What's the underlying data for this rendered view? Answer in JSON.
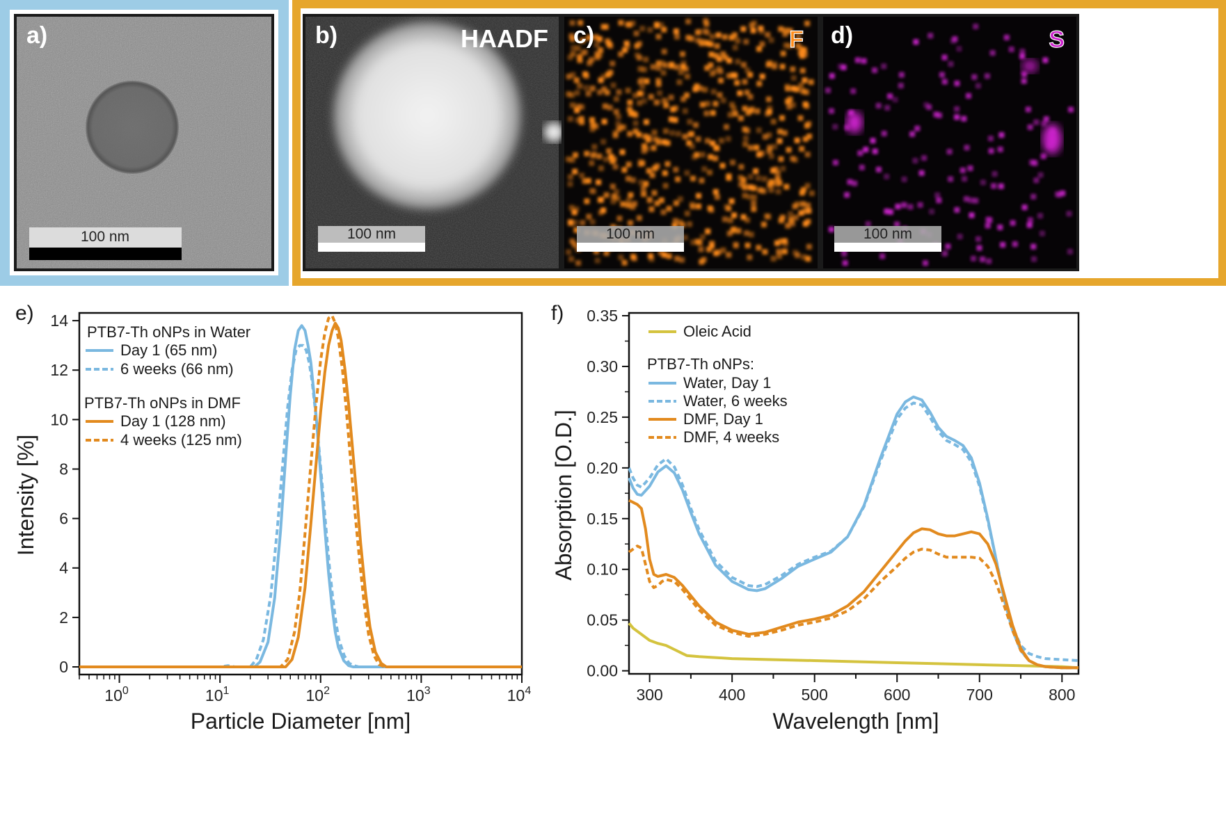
{
  "micrographs": {
    "a": {
      "label": "a)",
      "scale_bar": "100 nm"
    },
    "b": {
      "label": "b)",
      "channel": "HAADF",
      "scale_bar": "100 nm"
    },
    "c": {
      "label": "c)",
      "channel": "F",
      "scale_bar": "100 nm"
    },
    "d": {
      "label": "d)",
      "channel": "S",
      "scale_bar": "100 nm"
    },
    "colors": {
      "cryo_tem_frame": "#9dcce6",
      "stem_frame": "#e6a62c",
      "fluorine": "#ff8c1a",
      "sulfur": "#cc22cc"
    }
  },
  "chart_data": [
    {
      "panel": "e)",
      "type": "line",
      "xscale": "log",
      "xlabel": "Particle Diameter [nm]",
      "ylabel": "Intensity [%]",
      "xlim": [
        0.4,
        10000
      ],
      "ylim": [
        0,
        14.2
      ],
      "xticks": [
        {
          "value": 1,
          "base": "10",
          "exp": "0"
        },
        {
          "value": 10,
          "base": "10",
          "exp": "1"
        },
        {
          "value": 100,
          "base": "10",
          "exp": "2"
        },
        {
          "value": 1000,
          "base": "10",
          "exp": "3"
        },
        {
          "value": 10000,
          "base": "10",
          "exp": "4"
        }
      ],
      "yticks": [
        0,
        2,
        4,
        6,
        8,
        10,
        12,
        14
      ],
      "legend_groups": [
        {
          "title": "PTB7-Th oNPs in Water",
          "items": [
            "Day 1 (65 nm)",
            "6 weeks (66 nm)"
          ]
        },
        {
          "title": "PTB7-Th oNPs in DMF",
          "items": [
            "Day 1 (128 nm)",
            "4 weeks (125 nm)"
          ]
        }
      ],
      "legend_placement": "top-left",
      "series": [
        {
          "name": "Day 1 (65 nm)",
          "color": "#7ab8e0",
          "dash": "solid",
          "x": [
            0.4,
            22,
            25,
            30,
            35,
            40,
            45,
            50,
            55,
            60,
            65,
            70,
            75,
            80,
            90,
            100,
            110,
            120,
            130,
            140,
            150,
            170,
            190,
            210,
            10000
          ],
          "y": [
            0,
            0,
            0.2,
            1.0,
            2.8,
            5.5,
            8.5,
            11.0,
            12.8,
            13.6,
            13.8,
            13.6,
            13.0,
            12.3,
            10.2,
            7.8,
            5.6,
            3.8,
            2.4,
            1.4,
            0.8,
            0.25,
            0.05,
            0,
            0
          ]
        },
        {
          "name": "6 weeks (66 nm)",
          "color": "#7ab8e0",
          "dash": "dotted",
          "x": [
            0.4,
            10,
            12,
            14,
            20,
            23,
            27,
            32,
            37,
            42,
            47,
            52,
            57,
            62,
            67,
            72,
            77,
            82,
            92,
            102,
            112,
            122,
            132,
            142,
            152,
            172,
            192,
            215,
            240,
            10000
          ],
          "y": [
            0,
            0,
            0.05,
            0,
            0,
            0.3,
            1.1,
            2.9,
            5.5,
            8.2,
            10.5,
            12.0,
            12.8,
            13.0,
            13.0,
            12.8,
            12.3,
            11.6,
            9.8,
            7.7,
            5.8,
            4.1,
            2.8,
            1.8,
            1.1,
            0.45,
            0.15,
            0.05,
            0,
            0
          ]
        },
        {
          "name": "Day 1 (128 nm)",
          "color": "#e28a1e",
          "dash": "solid",
          "x": [
            0.4,
            45,
            52,
            60,
            70,
            80,
            90,
            100,
            110,
            120,
            130,
            140,
            150,
            160,
            175,
            190,
            210,
            230,
            250,
            280,
            310,
            350,
            400,
            450,
            10000
          ],
          "y": [
            0,
            0,
            0.3,
            1.2,
            3.2,
            5.8,
            8.2,
            10.3,
            11.9,
            13.0,
            13.6,
            13.9,
            13.7,
            13.2,
            12.0,
            10.6,
            8.6,
            6.8,
            5.0,
            3.0,
            1.6,
            0.6,
            0.15,
            0,
            0
          ]
        },
        {
          "name": "4 weeks (125 nm)",
          "color": "#e28a1e",
          "dash": "dotted",
          "x": [
            0.4,
            40,
            47,
            55,
            62,
            70,
            80,
            90,
            100,
            110,
            120,
            130,
            140,
            150,
            165,
            180,
            200,
            220,
            245,
            270,
            300,
            340,
            380,
            430,
            10000
          ],
          "y": [
            0,
            0,
            0.3,
            1.4,
            3.0,
            5.4,
            8.2,
            10.6,
            12.4,
            13.5,
            14.1,
            14.2,
            13.9,
            13.3,
            12.0,
            10.4,
            8.2,
            6.2,
            4.2,
            2.6,
            1.3,
            0.45,
            0.1,
            0,
            0
          ]
        }
      ]
    },
    {
      "panel": "f)",
      "type": "line",
      "xlabel": "Wavelength [nm]",
      "ylabel": "Absorption [O.D.]",
      "xlim": [
        275,
        820
      ],
      "ylim": [
        -0.003,
        0.35
      ],
      "xticks": [
        300,
        400,
        500,
        600,
        700,
        800
      ],
      "yticks": [
        "0.00",
        "0.05",
        "0.10",
        "0.15",
        "0.20",
        "0.25",
        "0.30",
        "0.35"
      ],
      "legend_items": [
        "Oleic Acid"
      ],
      "legend_group": {
        "title": "PTB7-Th oNPs:",
        "items": [
          "Water, Day 1",
          "Water, 6 weeks",
          "DMF, Day 1",
          "DMF, 4 weeks"
        ]
      },
      "legend_placement": "top-left",
      "series": [
        {
          "name": "Oleic Acid",
          "color": "#d4c33e",
          "dash": "solid",
          "x": [
            275,
            280,
            290,
            300,
            310,
            320,
            330,
            340,
            345,
            360,
            400,
            450,
            500,
            550,
            600,
            650,
            700,
            750,
            800,
            820
          ],
          "y": [
            0.047,
            0.042,
            0.036,
            0.03,
            0.027,
            0.025,
            0.021,
            0.017,
            0.015,
            0.014,
            0.012,
            0.011,
            0.01,
            0.009,
            0.008,
            0.007,
            0.006,
            0.005,
            0.004,
            0.003
          ]
        },
        {
          "name": "Water, Day 1",
          "color": "#7ab8e0",
          "dash": "solid",
          "x": [
            275,
            280,
            285,
            290,
            300,
            310,
            320,
            330,
            340,
            350,
            360,
            380,
            400,
            420,
            430,
            440,
            460,
            480,
            500,
            520,
            540,
            560,
            580,
            600,
            610,
            620,
            630,
            640,
            650,
            660,
            670,
            680,
            690,
            700,
            710,
            720,
            730,
            740,
            750,
            760,
            770,
            780,
            800,
            820
          ],
          "y": [
            0.19,
            0.18,
            0.174,
            0.173,
            0.182,
            0.196,
            0.202,
            0.195,
            0.178,
            0.156,
            0.135,
            0.104,
            0.088,
            0.08,
            0.079,
            0.081,
            0.091,
            0.103,
            0.11,
            0.117,
            0.132,
            0.163,
            0.21,
            0.253,
            0.265,
            0.27,
            0.267,
            0.255,
            0.24,
            0.231,
            0.227,
            0.222,
            0.21,
            0.185,
            0.15,
            0.11,
            0.07,
            0.04,
            0.02,
            0.01,
            0.006,
            0.004,
            0.003,
            0.003
          ]
        },
        {
          "name": "Water, 6 weeks",
          "color": "#7ab8e0",
          "dash": "dotted",
          "x": [
            275,
            280,
            285,
            290,
            300,
            310,
            320,
            330,
            340,
            350,
            360,
            380,
            400,
            420,
            430,
            440,
            460,
            480,
            500,
            520,
            540,
            560,
            580,
            600,
            610,
            620,
            630,
            640,
            650,
            660,
            670,
            680,
            690,
            700,
            710,
            720,
            730,
            740,
            750,
            760,
            770,
            780,
            800,
            820
          ],
          "y": [
            0.2,
            0.19,
            0.183,
            0.181,
            0.19,
            0.203,
            0.209,
            0.201,
            0.183,
            0.16,
            0.139,
            0.108,
            0.092,
            0.084,
            0.083,
            0.085,
            0.094,
            0.105,
            0.112,
            0.118,
            0.132,
            0.162,
            0.207,
            0.248,
            0.259,
            0.264,
            0.262,
            0.25,
            0.236,
            0.227,
            0.223,
            0.218,
            0.206,
            0.182,
            0.148,
            0.11,
            0.072,
            0.043,
            0.025,
            0.017,
            0.014,
            0.012,
            0.011,
            0.01
          ]
        },
        {
          "name": "DMF, Day 1",
          "color": "#e28a1e",
          "dash": "solid",
          "x": [
            275,
            280,
            285,
            290,
            295,
            300,
            305,
            310,
            315,
            320,
            330,
            340,
            360,
            380,
            400,
            420,
            440,
            460,
            480,
            500,
            520,
            540,
            560,
            580,
            600,
            610,
            620,
            630,
            640,
            650,
            660,
            670,
            680,
            690,
            700,
            710,
            720,
            730,
            740,
            750,
            760,
            770,
            780,
            800,
            820
          ],
          "y": [
            0.168,
            0.166,
            0.164,
            0.16,
            0.14,
            0.11,
            0.095,
            0.093,
            0.094,
            0.095,
            0.092,
            0.084,
            0.064,
            0.048,
            0.04,
            0.036,
            0.038,
            0.043,
            0.048,
            0.051,
            0.055,
            0.064,
            0.078,
            0.098,
            0.118,
            0.128,
            0.136,
            0.14,
            0.139,
            0.135,
            0.133,
            0.133,
            0.135,
            0.137,
            0.135,
            0.125,
            0.105,
            0.075,
            0.045,
            0.022,
            0.01,
            0.006,
            0.004,
            0.003,
            0.003
          ]
        },
        {
          "name": "DMF, 4 weeks",
          "color": "#e28a1e",
          "dash": "dotted",
          "x": [
            275,
            280,
            285,
            290,
            295,
            300,
            305,
            310,
            315,
            320,
            330,
            340,
            360,
            380,
            400,
            420,
            440,
            460,
            480,
            500,
            520,
            540,
            560,
            580,
            600,
            610,
            620,
            630,
            640,
            650,
            660,
            670,
            680,
            690,
            700,
            710,
            720,
            730,
            740,
            750,
            760,
            770,
            780,
            800,
            820
          ],
          "y": [
            0.117,
            0.12,
            0.123,
            0.121,
            0.105,
            0.088,
            0.082,
            0.084,
            0.088,
            0.09,
            0.088,
            0.08,
            0.06,
            0.045,
            0.038,
            0.034,
            0.036,
            0.04,
            0.045,
            0.048,
            0.052,
            0.059,
            0.071,
            0.088,
            0.103,
            0.111,
            0.117,
            0.12,
            0.119,
            0.115,
            0.112,
            0.112,
            0.112,
            0.112,
            0.111,
            0.103,
            0.087,
            0.064,
            0.04,
            0.02,
            0.01,
            0.006,
            0.004,
            0.003,
            0.003
          ]
        }
      ]
    }
  ]
}
